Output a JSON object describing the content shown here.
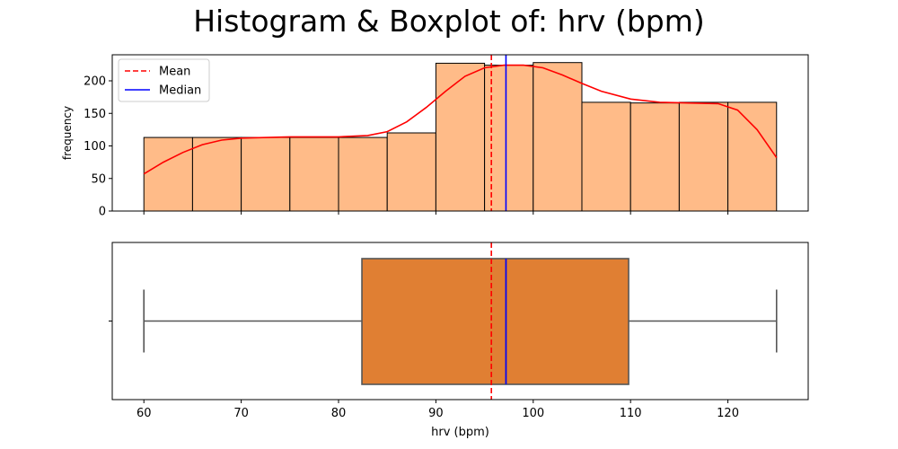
{
  "title": "Histogram & Boxplot of: hrv (bpm)",
  "chart_data": [
    {
      "type": "histogram",
      "ylabel": "frequency",
      "bins": [
        60,
        65,
        70,
        75,
        80,
        85,
        90,
        95,
        100,
        105,
        110,
        115,
        120,
        125
      ],
      "counts": [
        113,
        113,
        113,
        113,
        113,
        120,
        227,
        224,
        228,
        167,
        166,
        167,
        167
      ],
      "kde": {
        "x": [
          60,
          62,
          64,
          66,
          68,
          70,
          75,
          80,
          83,
          85,
          87,
          89,
          91,
          93,
          95,
          97,
          99,
          101,
          103,
          105,
          107,
          110,
          113,
          116,
          119,
          121,
          123,
          125
        ],
        "y": [
          57,
          75,
          90,
          102,
          109,
          112,
          114,
          114,
          116,
          122,
          137,
          159,
          184,
          207,
          220,
          224,
          224,
          220,
          209,
          196,
          184,
          172,
          167,
          166,
          165,
          155,
          125,
          82
        ]
      },
      "xlim": [
        56.75,
        128.25
      ],
      "ylim": [
        0,
        240
      ],
      "yticks": [
        0,
        50,
        100,
        150,
        200
      ],
      "bar_color": "#ffbb88",
      "kde_color": "#ff0000",
      "legend": {
        "position": "top-left",
        "entries": [
          {
            "label": "Mean",
            "color": "#ff0000",
            "style": "dashed"
          },
          {
            "label": "Median",
            "color": "#0000ff",
            "style": "solid"
          }
        ]
      },
      "mean": 95.7,
      "median": 97.2
    },
    {
      "type": "boxplot",
      "xlabel": "hrv (bpm)",
      "whisker_low": 60,
      "q1": 82.4,
      "median": 97.2,
      "q3": 109.8,
      "whisker_high": 125,
      "mean": 95.7,
      "xlim": [
        56.75,
        128.25
      ],
      "xticks": [
        60,
        70,
        80,
        90,
        100,
        110,
        120
      ],
      "box_color": "#e07f33"
    }
  ]
}
